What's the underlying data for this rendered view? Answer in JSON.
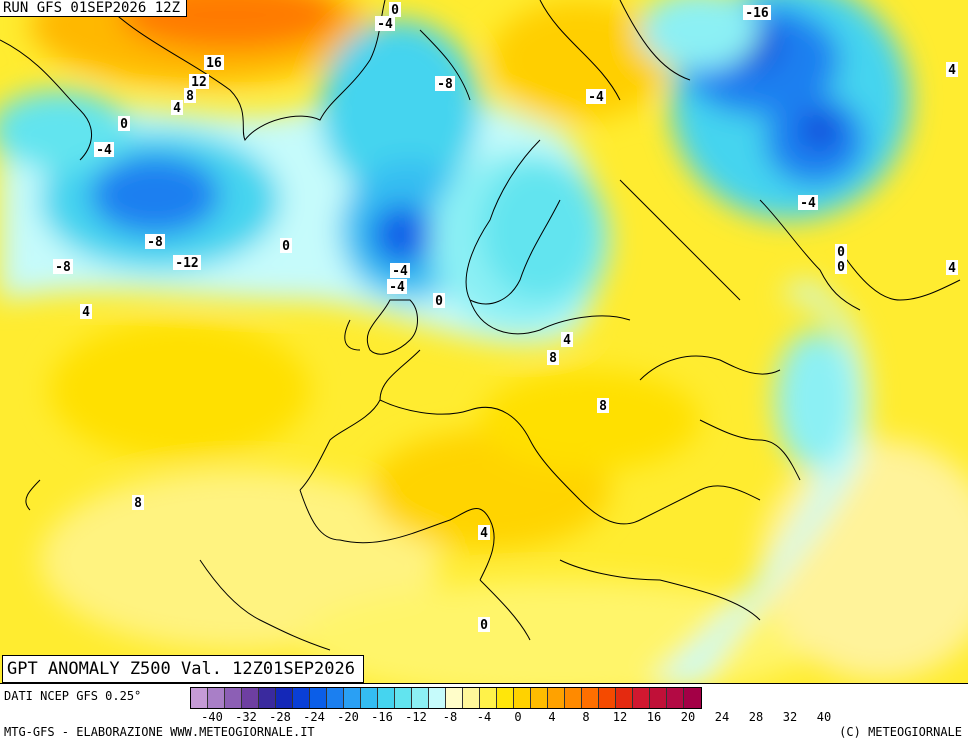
{
  "header": {
    "run_title": "RUN GFS 01SEP2026 12Z"
  },
  "map": {
    "title": "GPT ANOMALY Z500 Val. 12Z01SEP2026",
    "contour_labels": [
      "0",
      "-4",
      "16",
      "12",
      "8",
      "4",
      "0",
      "-4",
      "-8",
      "-4",
      "0",
      "-8",
      "-12",
      "-8",
      "-4",
      "-4",
      "0",
      "4",
      "8",
      "4",
      "8",
      "8",
      "4",
      "0",
      "-16",
      "-4",
      "0",
      "0",
      "4",
      "4"
    ]
  },
  "legend": {
    "source": "DATI NCEP GFS 0.25°",
    "colors": [
      "#c59bd6",
      "#a97fc7",
      "#8c5fb5",
      "#6e3fa1",
      "#3a2a9e",
      "#1428b8",
      "#0a3fd6",
      "#0b5ee8",
      "#1b7ff0",
      "#2aa0f4",
      "#34bdf2",
      "#45d4ef",
      "#62e4ef",
      "#8cf0f4",
      "#c6fbfb",
      "#fffdc9",
      "#fff79a",
      "#fff24a",
      "#ffe60a",
      "#ffd200",
      "#ffbc00",
      "#ffa200",
      "#ff8a00",
      "#ff6f00",
      "#f54a00",
      "#e42a10",
      "#d11830",
      "#c01038",
      "#b30a44",
      "#a30046"
    ],
    "ticks": [
      "-40",
      "-32",
      "-28",
      "-24",
      "-20",
      "-16",
      "-12",
      "-8",
      "-4",
      "0",
      "4",
      "8",
      "12",
      "16",
      "20",
      "24",
      "28",
      "32",
      "40"
    ]
  },
  "footer": {
    "credit_left": "MTG-GFS - ELABORAZIONE WWW.METEOGIORNALE.IT",
    "credit_right": "(C) METEOGIORNALE"
  }
}
